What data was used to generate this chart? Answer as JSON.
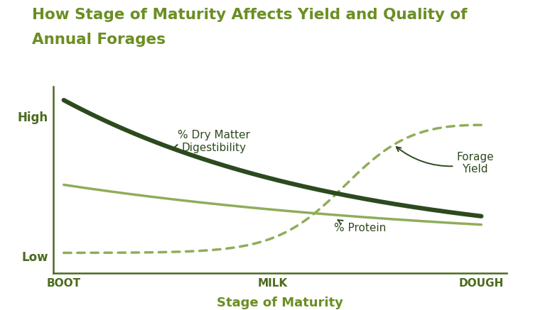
{
  "title_line1": "How Stage of Maturity Affects Yield and Quality of",
  "title_line2": "Annual Forages",
  "title_color": "#6B8E23",
  "title_fontsize": 15.5,
  "xlabel": "Stage of Maturity",
  "xlabel_fontsize": 13,
  "xlabel_color": "#6B8E23",
  "ylabel_high": "High",
  "ylabel_low": "Low",
  "ylabel_fontsize": 12,
  "ylabel_color": "#4a6b1e",
  "xtick_labels": [
    "BOOT",
    "MILK",
    "DOUGH"
  ],
  "xtick_color": "#4a6b1e",
  "xtick_fontsize": 11,
  "background_color": "#ffffff",
  "axes_color": "#4a6b1e",
  "dmd_color": "#2d4a1e",
  "protein_color": "#8fad5a",
  "forage_dot_color": "#8fad5a",
  "annotation_color": "#2d4a1e",
  "annotation_fontsize": 11,
  "dmd_linewidth": 4.5,
  "protein_linewidth": 2.5,
  "forage_linewidth": 2.5
}
